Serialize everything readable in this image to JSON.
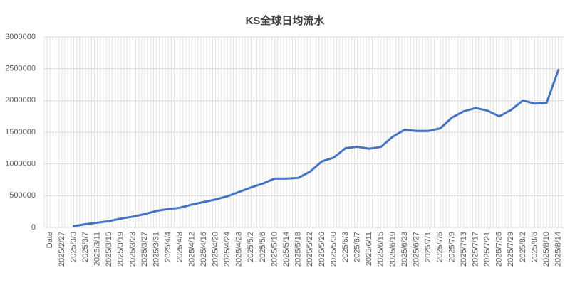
{
  "chart_data": {
    "type": "line",
    "title": "KS全球日均流水",
    "categories": [
      "Date",
      "2025/2/27",
      "2025/3/3",
      "2025/3/7",
      "2025/3/11",
      "2025/3/15",
      "2025/3/19",
      "2025/3/23",
      "2025/3/27",
      "2025/3/31",
      "2025/4/4",
      "2025/4/8",
      "2025/4/12",
      "2025/4/16",
      "2025/4/20",
      "2025/4/24",
      "2025/4/28",
      "2025/5/2",
      "2025/5/6",
      "2025/5/10",
      "2025/5/14",
      "2025/5/18",
      "2025/5/22",
      "2025/5/26",
      "2025/5/30",
      "2025/6/3",
      "2025/6/7",
      "2025/6/11",
      "2025/6/15",
      "2025/6/19",
      "2025/6/23",
      "2025/6/27",
      "2025/7/1",
      "2025/7/5",
      "2025/7/9",
      "2025/7/13",
      "2025/7/17",
      "2025/7/21",
      "2025/7/25",
      "2025/7/29",
      "2025/8/2",
      "2025/8/6",
      "2025/8/10",
      "2025/8/14"
    ],
    "values": [
      null,
      null,
      20000,
      50000,
      75000,
      100000,
      140000,
      170000,
      210000,
      260000,
      290000,
      310000,
      360000,
      400000,
      440000,
      490000,
      560000,
      630000,
      690000,
      770000,
      770000,
      780000,
      880000,
      1040000,
      1100000,
      1250000,
      1270000,
      1240000,
      1270000,
      1430000,
      1540000,
      1520000,
      1520000,
      1560000,
      1730000,
      1830000,
      1880000,
      1840000,
      1750000,
      1850000,
      2000000,
      1950000,
      1960000,
      2480000
    ],
    "color": "#4472c4",
    "ylim": [
      0,
      3000000
    ],
    "yticks": [
      0,
      500000,
      1000000,
      1500000,
      2000000,
      2500000,
      3000000
    ],
    "grid": true
  }
}
